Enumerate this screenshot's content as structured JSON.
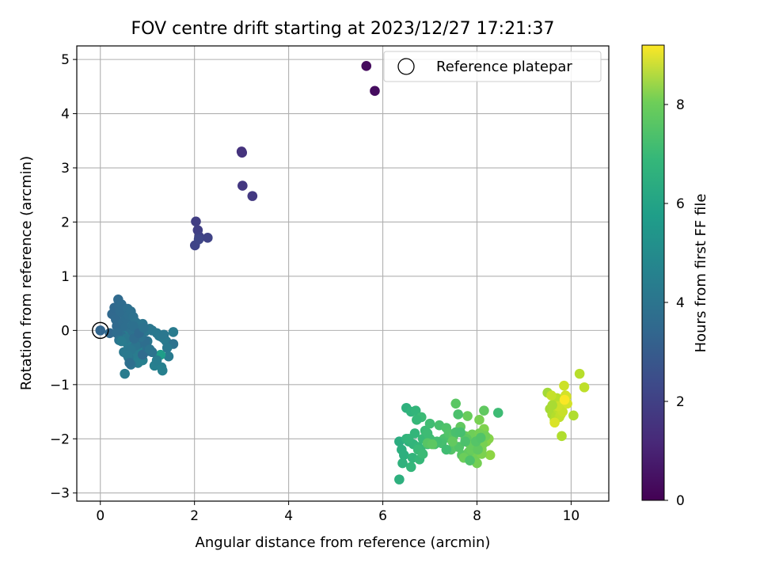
{
  "chart_data": {
    "type": "scatter",
    "title": "FOV centre drift starting at 2023/12/27 17:21:37",
    "xlabel": "Angular distance from reference (arcmin)",
    "ylabel": "Rotation from reference (arcmin)",
    "xlim": [
      -0.5,
      10.8
    ],
    "ylim": [
      -3.15,
      5.25
    ],
    "xticks": [
      0,
      2,
      4,
      6,
      8,
      10
    ],
    "yticks": [
      -3,
      -2,
      -1,
      0,
      1,
      2,
      3,
      4,
      5
    ],
    "grid": true,
    "legend": {
      "label": "Reference platepar",
      "placement": "top-right"
    },
    "reference": {
      "x": 0,
      "y": 0
    },
    "colorbar": {
      "label": "Hours from first FF file",
      "colormap": "viridis",
      "range": [
        0,
        9.2
      ],
      "ticks": [
        0,
        2,
        4,
        6,
        8
      ]
    },
    "series": [
      {
        "x": [
          5.65,
          5.83,
          3.0,
          3.01,
          3.02,
          3.23,
          2.03,
          2.07,
          2.1,
          2.28,
          2.01,
          2.09,
          0.0,
          0.2,
          0.25,
          0.3,
          0.33,
          0.35,
          0.38,
          0.4,
          0.42,
          0.45,
          0.48,
          0.5,
          0.52,
          0.55,
          0.58,
          0.6,
          0.62,
          0.65,
          0.68,
          0.7,
          0.72,
          0.75,
          0.78,
          0.8,
          0.85,
          0.88,
          0.9,
          0.95,
          1.0,
          1.05,
          1.1,
          1.2,
          1.25,
          1.3,
          1.35,
          1.4,
          1.45,
          1.55,
          0.5,
          0.55,
          0.6,
          0.65,
          0.7,
          0.75,
          0.8,
          0.9,
          1.15,
          1.3,
          1.32,
          0.65,
          1.55,
          0.45,
          0.35,
          0.55,
          0.6,
          0.75,
          0.85,
          0.95,
          1.0,
          1.28,
          0.4,
          0.7,
          0.8,
          0.9,
          0.6,
          0.5,
          0.45,
          1.2,
          1.1,
          1.0,
          0.95,
          0.85,
          0.75,
          0.65,
          0.58,
          0.52,
          0.62,
          0.72,
          0.82,
          0.92,
          1.05,
          1.35,
          1.42,
          6.35,
          6.4,
          6.45,
          6.5,
          6.55,
          6.6,
          6.65,
          6.7,
          6.75,
          6.8,
          6.85,
          6.9,
          6.95,
          7.0,
          7.05,
          7.1,
          7.2,
          7.3,
          7.35,
          7.4,
          7.45,
          7.5,
          7.55,
          7.6,
          7.65,
          7.7,
          7.75,
          7.8,
          7.85,
          7.9,
          7.95,
          8.0,
          8.05,
          8.1,
          8.15,
          8.2,
          8.25,
          8.28,
          8.45,
          8.15,
          6.42,
          6.63,
          6.35,
          6.5,
          6.68,
          6.78,
          6.82,
          7.0,
          7.25,
          7.6,
          7.62,
          7.68,
          7.78,
          7.82,
          7.88,
          7.95,
          8.05,
          8.1,
          8.12,
          8.18,
          7.72,
          7.9,
          8.02,
          6.6,
          6.75,
          6.95,
          7.15,
          7.55,
          7.85,
          7.98,
          6.55,
          6.72,
          6.85,
          7.35,
          7.65,
          7.75,
          8.08,
          6.95,
          7.05,
          7.48,
          9.5,
          9.55,
          9.6,
          9.62,
          9.65,
          9.68,
          9.7,
          9.72,
          9.75,
          9.78,
          9.8,
          9.82,
          9.85,
          9.88,
          9.9,
          10.05,
          10.18,
          10.28,
          9.58,
          9.72,
          9.92,
          9.65,
          9.6,
          9.8,
          9.86
        ],
        "y": [
          4.88,
          4.42,
          3.3,
          3.28,
          2.67,
          2.48,
          2.01,
          1.85,
          1.73,
          1.71,
          1.57,
          1.68,
          0.0,
          -0.05,
          0.3,
          0.42,
          0.2,
          0.08,
          0.57,
          0.45,
          0.35,
          0.48,
          0.15,
          0.3,
          0.05,
          0.22,
          0.4,
          0.28,
          -0.05,
          0.35,
          0.1,
          0.25,
          0.0,
          0.15,
          -0.1,
          0.12,
          0.05,
          -0.15,
          0.12,
          -0.02,
          -0.2,
          0.03,
          0.0,
          -0.05,
          -0.1,
          -0.12,
          -0.15,
          -0.2,
          -0.48,
          -0.03,
          -0.1,
          -0.22,
          -0.3,
          -0.38,
          -0.45,
          -0.52,
          -0.6,
          -0.55,
          -0.65,
          -0.68,
          -0.74,
          -0.63,
          -0.25,
          -0.1,
          -0.05,
          -0.15,
          -0.35,
          -0.42,
          -0.3,
          -0.25,
          -0.38,
          -0.45,
          -0.18,
          0.08,
          -0.25,
          -0.45,
          -0.5,
          -0.4,
          -0.2,
          -0.55,
          -0.4,
          -0.32,
          -0.2,
          -0.12,
          -0.28,
          -0.36,
          -0.46,
          -0.8,
          -0.6,
          -0.15,
          -0.05,
          0.05,
          -0.35,
          -0.08,
          -0.32,
          -2.05,
          -2.2,
          -2.3,
          -1.43,
          -2.05,
          -1.5,
          -2.1,
          -1.48,
          -2.15,
          -2.2,
          -2.0,
          -1.85,
          -2.1,
          -1.72,
          -2.05,
          -2.1,
          -1.75,
          -2.0,
          -1.8,
          -1.9,
          -2.2,
          -1.95,
          -1.35,
          -2.15,
          -1.78,
          -2.3,
          -1.95,
          -1.58,
          -2.1,
          -1.92,
          -2.35,
          -2.45,
          -1.65,
          -2.2,
          -1.82,
          -2.05,
          -2.0,
          -2.3,
          -1.52,
          -1.48,
          -2.45,
          -2.35,
          -2.75,
          -2.0,
          -1.9,
          -2.38,
          -1.6,
          -2.0,
          -2.08,
          -1.55,
          -2.15,
          -2.3,
          -2.0,
          -2.25,
          -2.2,
          -2.1,
          -1.9,
          -2.28,
          -2.1,
          -1.95,
          -2.35,
          -2.12,
          -2.2,
          -2.52,
          -2.2,
          -1.9,
          -2.05,
          -1.88,
          -2.4,
          -2.05,
          -2.0,
          -1.65,
          -2.28,
          -2.2,
          -1.88,
          -2.05,
          -1.98,
          -2.08,
          -2.1,
          -2.05,
          -1.15,
          -1.45,
          -1.55,
          -1.5,
          -1.65,
          -1.58,
          -1.25,
          -1.45,
          -1.6,
          -1.55,
          -1.38,
          -1.5,
          -1.02,
          -1.2,
          -1.22,
          -1.57,
          -0.8,
          -1.05,
          -1.2,
          -1.4,
          -1.35,
          -1.7,
          -1.38,
          -1.95,
          -1.28
        ],
        "hours": [
          0.25,
          0.3,
          1.3,
          1.35,
          1.5,
          1.55,
          1.7,
          1.75,
          1.8,
          1.85,
          1.9,
          1.95,
          3.0,
          3.1,
          3.1,
          3.12,
          3.14,
          3.16,
          3.18,
          3.2,
          3.22,
          3.24,
          3.26,
          3.28,
          3.3,
          3.32,
          3.34,
          3.36,
          3.38,
          3.4,
          3.42,
          3.44,
          3.46,
          3.48,
          3.5,
          3.52,
          3.54,
          3.56,
          3.58,
          3.6,
          3.62,
          3.64,
          3.66,
          3.68,
          3.7,
          3.72,
          3.74,
          3.76,
          3.78,
          3.8,
          3.82,
          3.84,
          3.86,
          3.88,
          3.9,
          3.92,
          3.94,
          3.96,
          3.98,
          4.0,
          4.02,
          3.55,
          3.45,
          3.35,
          3.25,
          3.65,
          3.75,
          3.85,
          3.95,
          3.7,
          3.6,
          5.1,
          3.5,
          3.4,
          3.3,
          3.2,
          3.6,
          3.7,
          3.8,
          3.9,
          3.5,
          3.4,
          3.3,
          3.45,
          3.55,
          3.65,
          3.75,
          3.85,
          3.35,
          3.25,
          3.15,
          3.45,
          3.55,
          3.65,
          3.75,
          5.7,
          5.75,
          5.8,
          5.85,
          5.9,
          5.95,
          6.0,
          6.05,
          6.1,
          6.15,
          6.2,
          6.25,
          6.3,
          6.35,
          6.4,
          6.45,
          6.5,
          6.55,
          6.6,
          6.65,
          6.7,
          6.75,
          6.8,
          6.85,
          6.9,
          6.95,
          7.0,
          7.05,
          7.1,
          7.15,
          7.2,
          7.25,
          7.3,
          7.35,
          7.4,
          7.45,
          7.5,
          7.6,
          6.3,
          6.9,
          5.9,
          6.0,
          5.8,
          5.95,
          6.05,
          6.15,
          6.25,
          6.35,
          6.45,
          6.55,
          6.65,
          6.75,
          6.85,
          6.95,
          7.05,
          7.15,
          7.25,
          7.35,
          7.3,
          7.2,
          7.1,
          7.0,
          6.9,
          6.1,
          6.2,
          6.3,
          6.4,
          6.5,
          6.6,
          6.7,
          6.05,
          6.15,
          6.25,
          6.35,
          6.45,
          6.55,
          6.65,
          6.75,
          6.85,
          6.95,
          7.9,
          7.95,
          8.0,
          8.05,
          8.1,
          8.15,
          8.2,
          8.25,
          8.3,
          8.35,
          8.4,
          8.45,
          8.5,
          8.55,
          8.6,
          8.1,
          8.2,
          8.3,
          8.4,
          8.5,
          8.6,
          8.7,
          8.0,
          8.1,
          9.15
        ]
      }
    ]
  }
}
